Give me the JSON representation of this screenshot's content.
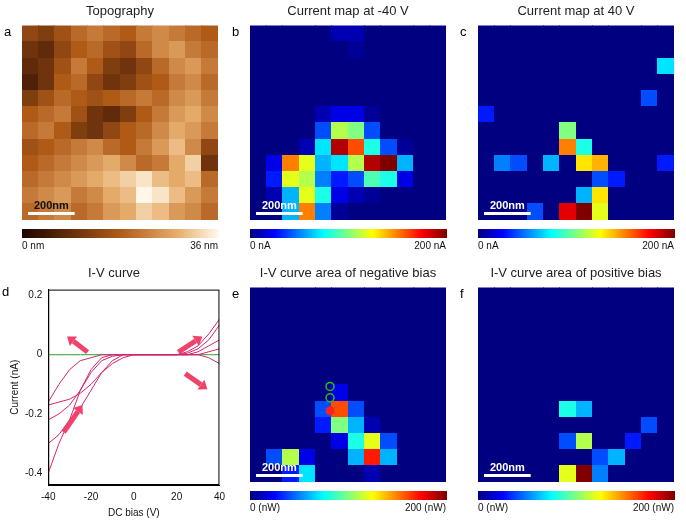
{
  "chart_data": [
    {
      "panel": "a",
      "type": "heatmap",
      "title": "Topography",
      "color": "brown",
      "xlim": [
        0,
        840
      ],
      "ylim": [
        0,
        840
      ],
      "tick_labels": false,
      "scale_bar": {
        "value": 200,
        "label": "200nm"
      },
      "colorbar": {
        "range": [
          0,
          36
        ],
        "ticks": [
          {
            "value": 0,
            "label": "0 nm"
          },
          {
            "value": 36,
            "label": "36 nm"
          }
        ]
      },
      "cells": [
        [
          14,
          12,
          16,
          20,
          22,
          20,
          18,
          22,
          24,
          22,
          20,
          18
        ],
        [
          10,
          8,
          14,
          18,
          20,
          16,
          14,
          20,
          24,
          26,
          22,
          20
        ],
        [
          8,
          10,
          16,
          22,
          18,
          12,
          10,
          14,
          20,
          24,
          26,
          22
        ],
        [
          6,
          10,
          18,
          20,
          14,
          10,
          12,
          16,
          18,
          22,
          24,
          20
        ],
        [
          12,
          16,
          20,
          18,
          16,
          18,
          20,
          22,
          20,
          24,
          26,
          22
        ],
        [
          18,
          20,
          22,
          16,
          10,
          8,
          12,
          18,
          22,
          26,
          28,
          24
        ],
        [
          20,
          22,
          18,
          12,
          10,
          14,
          18,
          20,
          24,
          28,
          26,
          22
        ],
        [
          16,
          18,
          20,
          22,
          24,
          20,
          18,
          22,
          26,
          30,
          24,
          14
        ],
        [
          18,
          20,
          22,
          24,
          26,
          28,
          24,
          20,
          22,
          28,
          32,
          10
        ],
        [
          20,
          22,
          24,
          26,
          28,
          30,
          32,
          34,
          30,
          28,
          30,
          20
        ],
        [
          22,
          24,
          26,
          22,
          24,
          28,
          30,
          36,
          34,
          30,
          26,
          22
        ],
        [
          20,
          22,
          24,
          20,
          22,
          26,
          28,
          32,
          30,
          26,
          24,
          20
        ]
      ]
    },
    {
      "panel": "b",
      "type": "heatmap",
      "title": "Current map at -40 V",
      "color": "jet",
      "xlim": [
        0,
        840
      ],
      "ylim": [
        0,
        840
      ],
      "tick_labels": false,
      "scale_bar": {
        "value": 200,
        "label": "200nm"
      },
      "colorbar": {
        "range": [
          0,
          200
        ],
        "ticks": [
          {
            "value": 0,
            "label": "0 nA"
          },
          {
            "value": 200,
            "label": "200 nA"
          }
        ]
      },
      "cells": [
        [
          0,
          0,
          0,
          0,
          0,
          10,
          10,
          0,
          0,
          0,
          0,
          0
        ],
        [
          0,
          0,
          0,
          0,
          0,
          0,
          5,
          0,
          0,
          0,
          0,
          0
        ],
        [
          0,
          0,
          0,
          0,
          0,
          0,
          0,
          0,
          0,
          0,
          0,
          0
        ],
        [
          0,
          0,
          0,
          0,
          0,
          0,
          0,
          0,
          0,
          0,
          0,
          0
        ],
        [
          0,
          0,
          0,
          0,
          0,
          0,
          0,
          0,
          0,
          0,
          0,
          0
        ],
        [
          0,
          0,
          0,
          0,
          10,
          20,
          20,
          5,
          0,
          0,
          0,
          0
        ],
        [
          0,
          0,
          0,
          0,
          40,
          110,
          100,
          40,
          0,
          0,
          0,
          0
        ],
        [
          0,
          0,
          0,
          10,
          70,
          190,
          160,
          80,
          40,
          5,
          0,
          0
        ],
        [
          0,
          20,
          150,
          120,
          60,
          70,
          110,
          190,
          200,
          60,
          0,
          0
        ],
        [
          0,
          30,
          120,
          110,
          50,
          30,
          40,
          90,
          80,
          20,
          0,
          0
        ],
        [
          0,
          10,
          60,
          120,
          80,
          20,
          10,
          5,
          0,
          0,
          0,
          0
        ],
        [
          0,
          0,
          60,
          150,
          50,
          5,
          0,
          0,
          0,
          0,
          0,
          0
        ]
      ]
    },
    {
      "panel": "c",
      "type": "heatmap",
      "title": "Current map at 40 V",
      "color": "jet",
      "xlim": [
        0,
        840
      ],
      "ylim": [
        0,
        840
      ],
      "tick_labels": false,
      "scale_bar": {
        "value": 200,
        "label": "200nm"
      },
      "colorbar": {
        "range": [
          0,
          200
        ],
        "ticks": [
          {
            "value": 0,
            "label": "0 nA"
          },
          {
            "value": 200,
            "label": "200 nA"
          }
        ]
      },
      "cells": [
        [
          0,
          0,
          0,
          0,
          0,
          0,
          0,
          0,
          0,
          0,
          0,
          0
        ],
        [
          0,
          0,
          0,
          0,
          0,
          0,
          0,
          0,
          0,
          0,
          0,
          0
        ],
        [
          0,
          0,
          0,
          0,
          0,
          0,
          0,
          0,
          0,
          0,
          0,
          70
        ],
        [
          0,
          0,
          0,
          0,
          0,
          0,
          0,
          0,
          0,
          0,
          0,
          0
        ],
        [
          0,
          0,
          0,
          0,
          0,
          0,
          0,
          0,
          0,
          0,
          40,
          0
        ],
        [
          30,
          0,
          0,
          0,
          0,
          0,
          0,
          0,
          0,
          0,
          0,
          0
        ],
        [
          0,
          0,
          0,
          0,
          0,
          100,
          0,
          0,
          0,
          0,
          0,
          0
        ],
        [
          0,
          0,
          0,
          0,
          0,
          150,
          80,
          0,
          0,
          0,
          0,
          0
        ],
        [
          0,
          50,
          40,
          0,
          60,
          0,
          130,
          140,
          0,
          0,
          0,
          30
        ],
        [
          0,
          0,
          0,
          0,
          0,
          0,
          0,
          40,
          30,
          0,
          0,
          0
        ],
        [
          0,
          0,
          0,
          0,
          0,
          0,
          60,
          130,
          0,
          0,
          0,
          0
        ],
        [
          0,
          0,
          0,
          40,
          0,
          180,
          200,
          120,
          0,
          0,
          0,
          0
        ]
      ]
    },
    {
      "panel": "d",
      "type": "line",
      "title": "I-V curve",
      "x_label": "DC bias (V)",
      "y_label": "Current (nA)",
      "xlim": [
        -40,
        40
      ],
      "xticks": [
        -40,
        -20,
        0,
        20,
        40
      ],
      "ylim": [
        -0.44,
        0.22
      ],
      "yticks": [
        -0.4,
        -0.2,
        0,
        0.2
      ],
      "grid": false,
      "x": [
        -40,
        -35,
        -30,
        -25,
        -20,
        -15,
        -10,
        -5,
        0,
        5,
        10,
        15,
        20,
        25,
        30,
        35,
        40
      ],
      "series": [
        {
          "color": "#d6256f",
          "values": [
            -0.4,
            -0.3,
            -0.22,
            -0.12,
            -0.05,
            -0.01,
            0,
            0,
            0,
            0,
            0,
            0,
            0,
            0.01,
            0.03,
            0.07,
            0.12
          ]
        },
        {
          "color": "#d6256f",
          "values": [
            -0.3,
            -0.27,
            -0.22,
            -0.18,
            -0.12,
            -0.06,
            -0.02,
            0,
            0,
            0,
            0,
            0,
            0,
            0.005,
            0.02,
            0.05,
            0.1
          ]
        },
        {
          "color": "#d6256f",
          "values": [
            -0.22,
            -0.2,
            -0.17,
            -0.12,
            -0.06,
            -0.02,
            -0.005,
            0,
            0,
            0,
            0,
            0,
            0,
            0,
            0.01,
            0.03,
            0.05
          ]
        },
        {
          "color": "#d6256f",
          "values": [
            -0.17,
            -0.16,
            -0.15,
            -0.13,
            -0.1,
            -0.06,
            -0.03,
            -0.01,
            0,
            0,
            0,
            0,
            0,
            0,
            0,
            -0.01,
            -0.03
          ]
        },
        {
          "color": "#d6256f",
          "values": [
            -0.16,
            -0.1,
            -0.05,
            -0.02,
            -0.01,
            0,
            0,
            0,
            0,
            0,
            0,
            0,
            0,
            0,
            0,
            0.01,
            0.02
          ]
        },
        {
          "color": "#2ca02c",
          "values": [
            0,
            0,
            0,
            0,
            0,
            0,
            0,
            0,
            0,
            0,
            0,
            0,
            0,
            0,
            0,
            0,
            0
          ]
        }
      ]
    },
    {
      "panel": "e",
      "type": "heatmap",
      "title": "I-V curve area of negative bias",
      "color": "jet",
      "xlim": [
        0,
        840
      ],
      "ylim": [
        0,
        840
      ],
      "tick_labels": false,
      "scale_bar": {
        "value": 200,
        "label": "200nm"
      },
      "colorbar": {
        "range": [
          0,
          200
        ],
        "ticks": [
          {
            "value": 0,
            "label": "0 (nW)"
          },
          {
            "value": 200,
            "label": "200 (nW)"
          }
        ]
      },
      "series": [
        {
          "type": "scatter",
          "marker": "circle",
          "color": "#22c022",
          "x": [
            343,
            343
          ],
          "y": [
            427,
            476
          ]
        },
        {
          "type": "scatter",
          "marker": "dot",
          "color": "#ff2020",
          "x": [
            343
          ],
          "y": [
            532
          ]
        }
      ],
      "cells": [
        [
          0,
          0,
          0,
          0,
          0,
          0,
          0,
          0,
          0,
          0,
          0,
          0
        ],
        [
          0,
          0,
          0,
          0,
          0,
          0,
          0,
          0,
          0,
          0,
          0,
          0
        ],
        [
          0,
          0,
          0,
          0,
          0,
          0,
          0,
          0,
          0,
          0,
          0,
          0
        ],
        [
          0,
          0,
          0,
          0,
          0,
          0,
          0,
          0,
          0,
          0,
          0,
          0
        ],
        [
          0,
          0,
          0,
          0,
          0,
          0,
          0,
          0,
          0,
          0,
          0,
          0
        ],
        [
          0,
          0,
          0,
          0,
          0,
          0,
          0,
          0,
          0,
          0,
          0,
          0
        ],
        [
          0,
          0,
          0,
          0,
          0,
          20,
          0,
          0,
          0,
          0,
          0,
          0
        ],
        [
          0,
          0,
          0,
          0,
          40,
          160,
          40,
          0,
          0,
          0,
          0,
          0
        ],
        [
          0,
          0,
          0,
          0,
          30,
          100,
          60,
          10,
          0,
          0,
          0,
          0
        ],
        [
          0,
          0,
          0,
          0,
          0,
          20,
          80,
          120,
          40,
          0,
          0,
          0
        ],
        [
          0,
          40,
          110,
          20,
          0,
          0,
          60,
          170,
          60,
          0,
          0,
          0
        ],
        [
          0,
          0,
          30,
          70,
          0,
          0,
          0,
          10,
          0,
          0,
          0,
          0
        ]
      ]
    },
    {
      "panel": "f",
      "type": "heatmap",
      "title": "I-V curve area of positive bias",
      "color": "jet",
      "xlim": [
        0,
        840
      ],
      "ylim": [
        0,
        840
      ],
      "tick_labels": false,
      "scale_bar": {
        "value": 200,
        "label": "200nm"
      },
      "colorbar": {
        "range": [
          0,
          200
        ],
        "ticks": [
          {
            "value": 0,
            "label": "0 (nW)"
          },
          {
            "value": 200,
            "label": "200 (nW)"
          }
        ]
      },
      "cells": [
        [
          0,
          0,
          0,
          0,
          0,
          0,
          0,
          0,
          0,
          0,
          0,
          0
        ],
        [
          0,
          0,
          0,
          0,
          0,
          0,
          0,
          0,
          0,
          0,
          0,
          0
        ],
        [
          0,
          0,
          0,
          0,
          0,
          0,
          0,
          0,
          0,
          0,
          0,
          0
        ],
        [
          0,
          0,
          0,
          0,
          0,
          0,
          0,
          0,
          0,
          0,
          0,
          0
        ],
        [
          0,
          0,
          0,
          0,
          0,
          0,
          0,
          0,
          0,
          0,
          0,
          0
        ],
        [
          0,
          0,
          0,
          0,
          0,
          0,
          0,
          0,
          0,
          0,
          0,
          0
        ],
        [
          0,
          0,
          0,
          0,
          0,
          0,
          0,
          0,
          0,
          0,
          0,
          0
        ],
        [
          0,
          0,
          0,
          0,
          0,
          80,
          60,
          0,
          0,
          0,
          0,
          0
        ],
        [
          0,
          0,
          0,
          0,
          0,
          0,
          0,
          0,
          0,
          0,
          40,
          0
        ],
        [
          0,
          0,
          0,
          0,
          0,
          40,
          110,
          0,
          0,
          30,
          0,
          0
        ],
        [
          0,
          0,
          0,
          0,
          0,
          0,
          0,
          40,
          60,
          0,
          0,
          0
        ],
        [
          0,
          0,
          0,
          0,
          0,
          120,
          200,
          50,
          0,
          0,
          0,
          0
        ]
      ]
    }
  ]
}
